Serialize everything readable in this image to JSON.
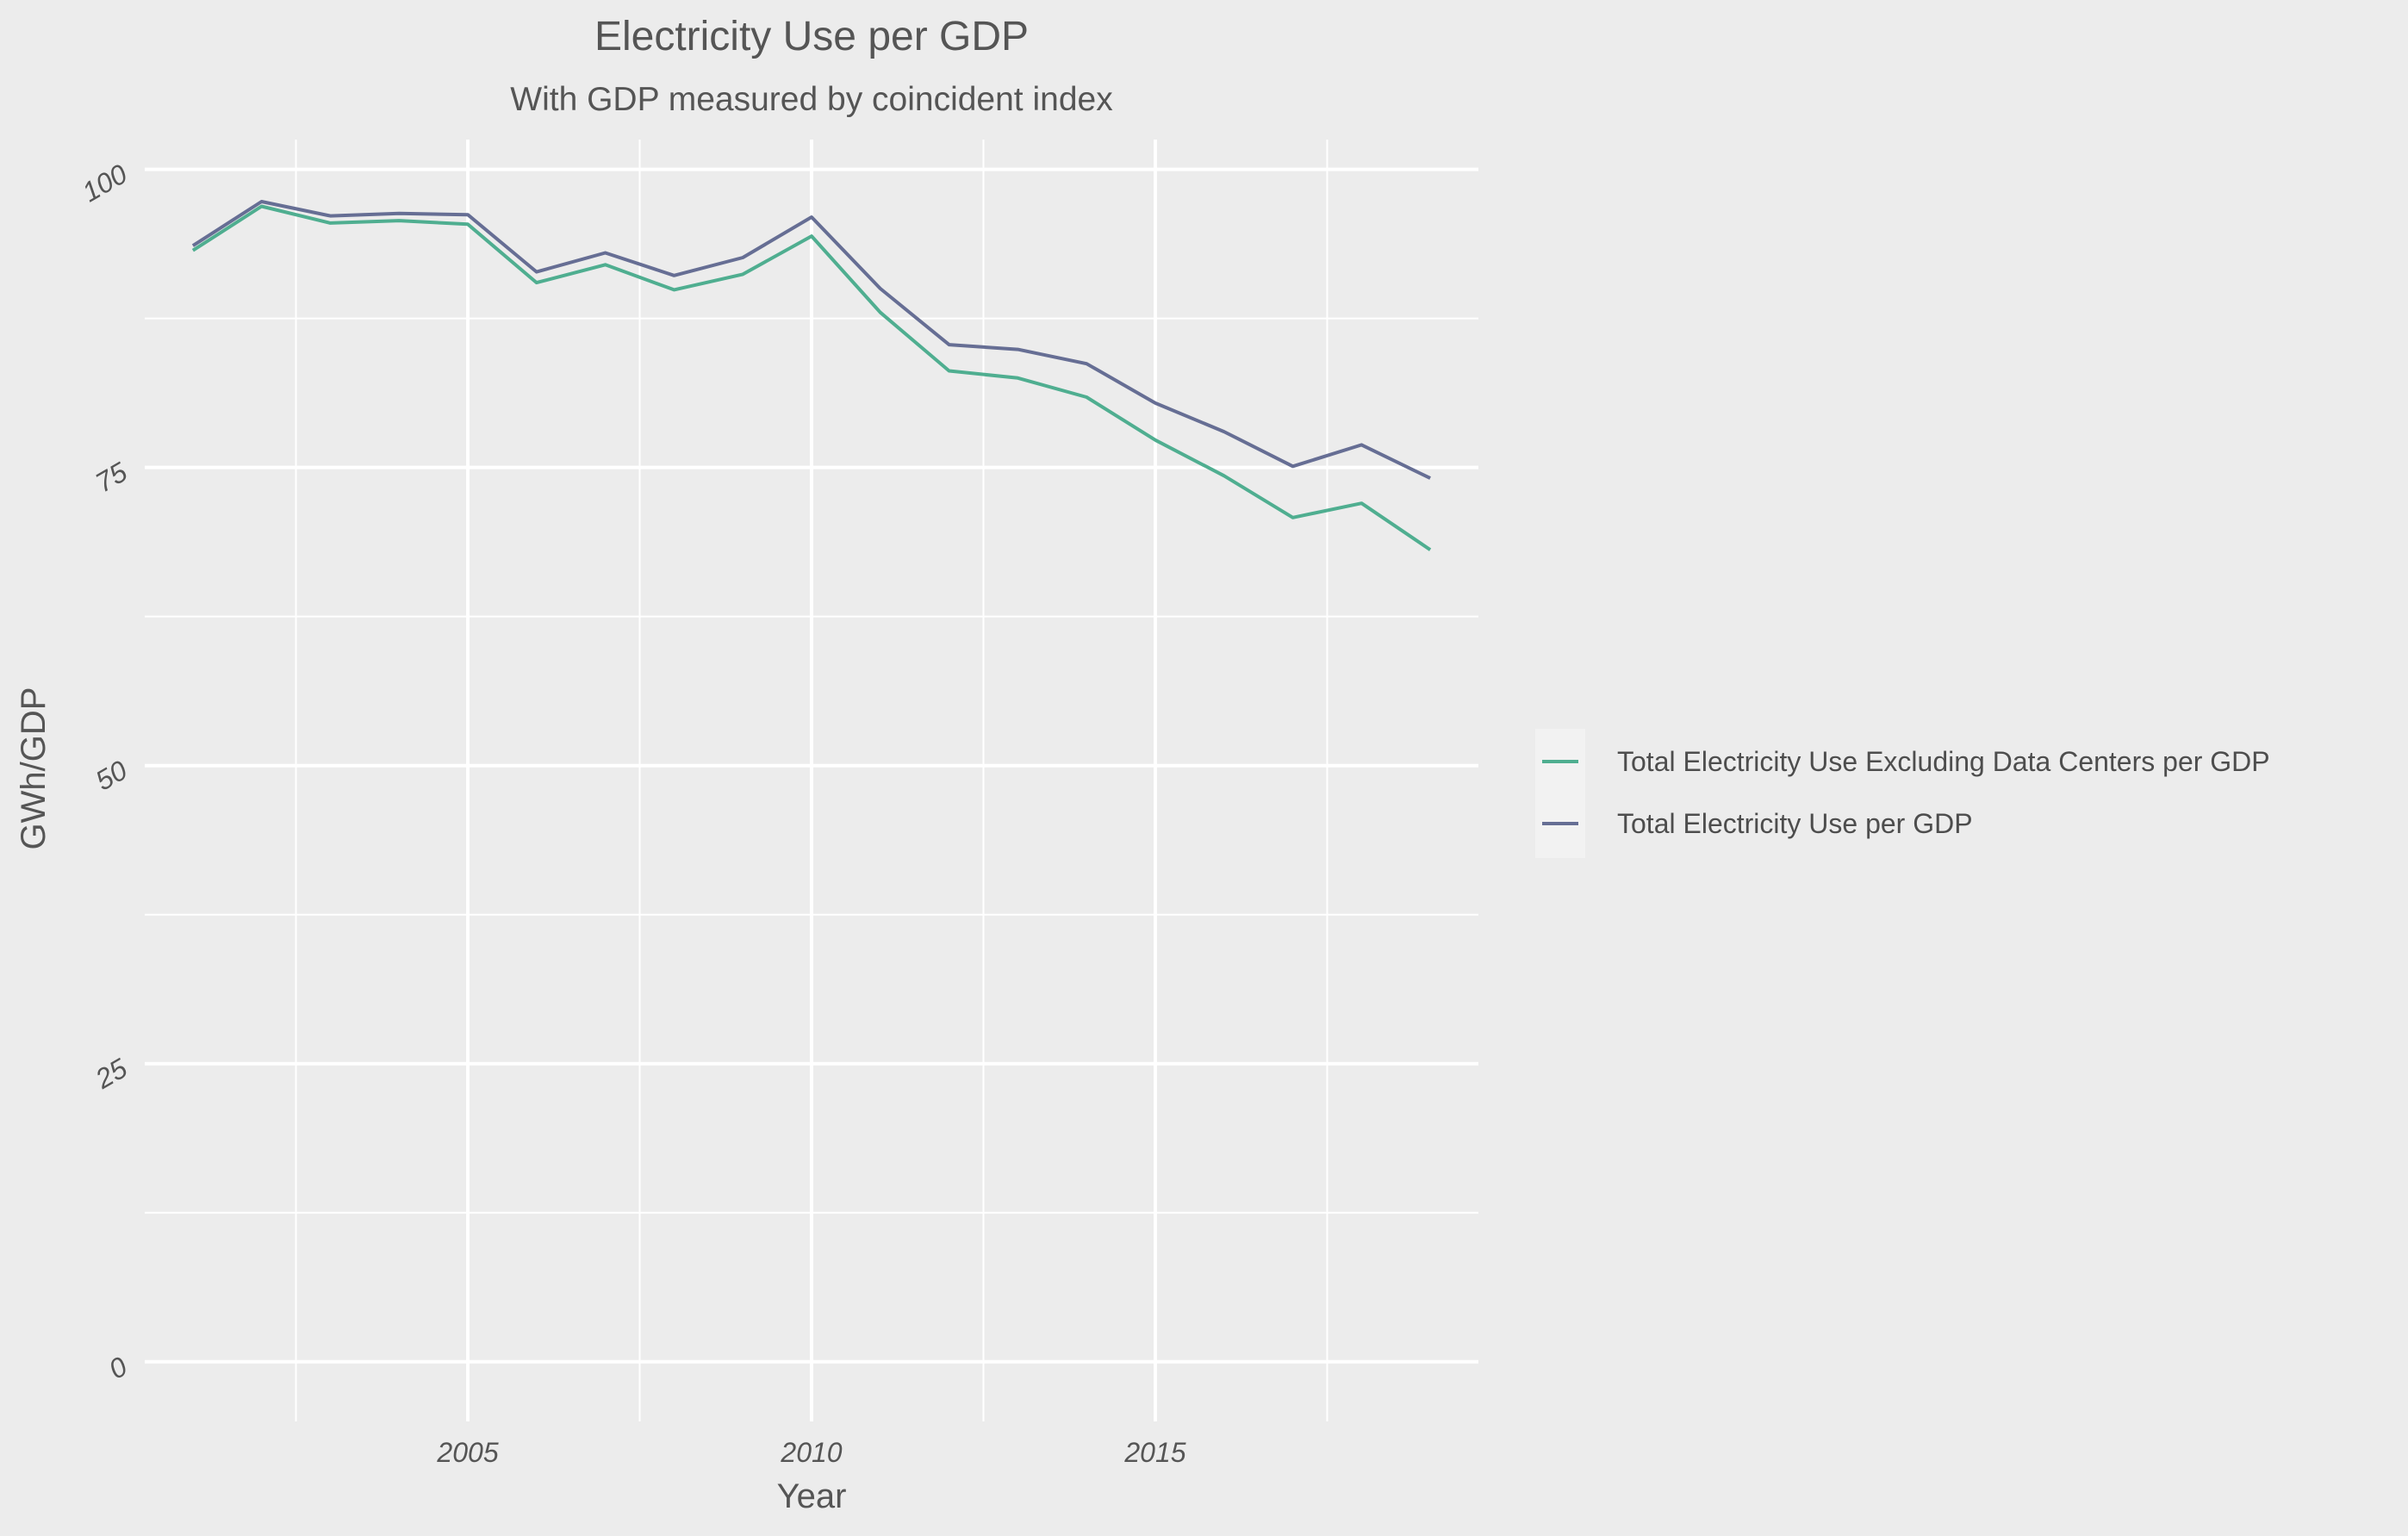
{
  "colors": {
    "background": "#ececec",
    "grid": "#ffffff",
    "series_excluding": "#4fae90",
    "series_total": "#666e94"
  },
  "chart_data": {
    "type": "line",
    "title": "Electricity Use per GDP",
    "subtitle": "With GDP measured by coincident index",
    "xlabel": "Year",
    "ylabel": "GWh/GDP",
    "xlim": [
      2000.3,
      2019.7
    ],
    "ylim": [
      -5,
      102.5
    ],
    "x_ticks": [
      2005,
      2010,
      2015
    ],
    "x_tick_labels": [
      "2005",
      "2010",
      "2015"
    ],
    "y_ticks": [
      0,
      25,
      50,
      75,
      100
    ],
    "y_tick_labels": [
      "0",
      "25",
      "50",
      "75",
      "100"
    ],
    "grid": true,
    "legend_position": "right",
    "x": [
      2001,
      2002,
      2003,
      2004,
      2005,
      2006,
      2007,
      2008,
      2009,
      2010,
      2011,
      2012,
      2013,
      2014,
      2015,
      2016,
      2017,
      2018,
      2019
    ],
    "series": [
      {
        "name": "Total Electricity Use Excluding Data Centers per GDP",
        "color": "#4fae90",
        "values": [
          93.2,
          96.9,
          95.5,
          95.7,
          95.4,
          90.5,
          92.0,
          89.9,
          91.2,
          94.4,
          88.0,
          83.1,
          82.5,
          80.9,
          77.3,
          74.3,
          70.8,
          72.0,
          68.1
        ]
      },
      {
        "name": "Total Electricity Use per GDP",
        "color": "#666e94",
        "values": [
          93.6,
          97.3,
          96.1,
          96.3,
          96.2,
          91.4,
          93.0,
          91.1,
          92.6,
          96.0,
          90.0,
          85.3,
          84.9,
          83.7,
          80.4,
          78.0,
          75.1,
          76.9,
          74.1
        ]
      }
    ]
  }
}
